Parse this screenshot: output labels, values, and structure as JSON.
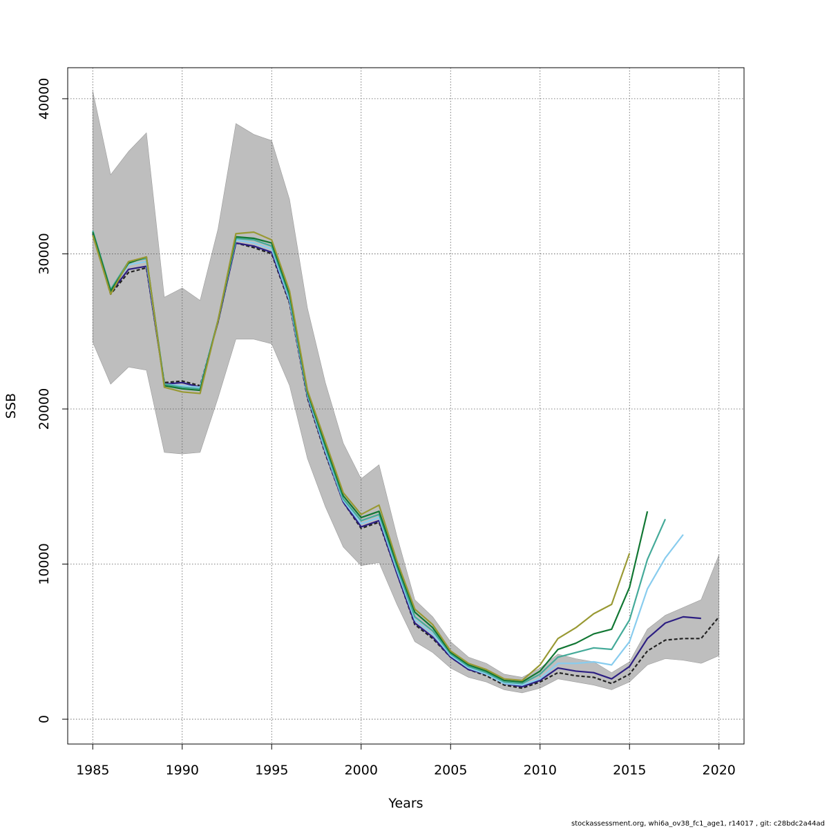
{
  "chart_data": {
    "type": "line",
    "xlabel": "Years",
    "ylabel": "SSB",
    "xlim": [
      1983.6,
      2021.4
    ],
    "ylim": [
      -1600,
      42000
    ],
    "x_ticks": [
      1985,
      1990,
      1995,
      2000,
      2005,
      2010,
      2015,
      2020
    ],
    "y_ticks": [
      0,
      10000,
      20000,
      30000,
      40000
    ],
    "grid": true,
    "band": {
      "color": "#bebebe",
      "x": [
        1985,
        1986,
        1987,
        1988,
        1989,
        1990,
        1991,
        1992,
        1993,
        1994,
        1995,
        1996,
        1997,
        1998,
        1999,
        2000,
        2001,
        2002,
        2003,
        2004,
        2005,
        2006,
        2007,
        2008,
        2009,
        2010,
        2011,
        2012,
        2013,
        2014,
        2015,
        2016,
        2017,
        2018,
        2019,
        2020
      ],
      "upper": [
        40500,
        35100,
        36600,
        37800,
        27200,
        27800,
        27000,
        31600,
        38400,
        37700,
        37300,
        33500,
        26500,
        21700,
        17800,
        15500,
        16400,
        11800,
        7700,
        6600,
        5000,
        4000,
        3600,
        2900,
        2700,
        3300,
        4200,
        3900,
        3700,
        3000,
        3700,
        5800,
        6700,
        7200,
        7700,
        10600
      ],
      "lower": [
        24300,
        21600,
        22700,
        22500,
        17200,
        17100,
        17200,
        20700,
        24500,
        24500,
        24200,
        21500,
        16800,
        13700,
        11100,
        9900,
        10100,
        7400,
        5000,
        4300,
        3300,
        2700,
        2400,
        1900,
        1700,
        2000,
        2600,
        2400,
        2200,
        1900,
        2400,
        3500,
        3900,
        3800,
        3600,
        4100
      ]
    },
    "series": [
      {
        "color": "#222222",
        "dashed": true,
        "width": 2.2,
        "x": [
          1985,
          1986,
          1987,
          1988,
          1989,
          1990,
          1991,
          1992,
          1993,
          1994,
          1995,
          1996,
          1997,
          1998,
          1999,
          2000,
          2001,
          2002,
          2003,
          2004,
          2005,
          2006,
          2007,
          2008,
          2009,
          2010,
          2011,
          2012,
          2013,
          2014,
          2015,
          2016,
          2017,
          2018,
          2019,
          2020
        ],
        "y": [
          31300,
          27400,
          28800,
          29100,
          21700,
          21800,
          21500,
          25600,
          30700,
          30400,
          30000,
          26800,
          20700,
          17100,
          14000,
          12300,
          12700,
          9400,
          6100,
          5200,
          4000,
          3200,
          2800,
          2200,
          2000,
          2400,
          3000,
          2800,
          2700,
          2300,
          2900,
          4400,
          5100,
          5200,
          5200,
          6600
        ]
      },
      {
        "color": "#2c1e82",
        "width": 2.2,
        "x": [
          1985,
          1986,
          1987,
          1988,
          1989,
          1990,
          1991,
          1992,
          1993,
          1994,
          1995,
          1996,
          1997,
          1998,
          1999,
          2000,
          2001,
          2002,
          2003,
          2004,
          2005,
          2006,
          2007,
          2008,
          2009,
          2010,
          2011,
          2012,
          2013,
          2014,
          2015,
          2016,
          2017,
          2018,
          2019
        ],
        "y": [
          31300,
          27500,
          29000,
          29200,
          21600,
          21700,
          21400,
          25600,
          30700,
          30500,
          30100,
          26900,
          20800,
          17200,
          14000,
          12400,
          12800,
          9400,
          6200,
          5300,
          4000,
          3200,
          2900,
          2300,
          2100,
          2500,
          3300,
          3100,
          3000,
          2600,
          3400,
          5200,
          6200,
          6600,
          6500
        ]
      },
      {
        "color": "#88ccee",
        "width": 2.2,
        "x": [
          1985,
          1986,
          1987,
          1988,
          1989,
          1990,
          1991,
          1992,
          1993,
          1994,
          1995,
          1996,
          1997,
          1998,
          1999,
          2000,
          2001,
          2002,
          2003,
          2004,
          2005,
          2006,
          2007,
          2008,
          2009,
          2010,
          2011,
          2012,
          2013,
          2014,
          2015,
          2016,
          2017,
          2018
        ],
        "y": [
          31400,
          27600,
          29300,
          29500,
          21600,
          21500,
          21400,
          25700,
          30900,
          30700,
          30300,
          27000,
          20900,
          17300,
          14100,
          12600,
          13000,
          9600,
          6400,
          5500,
          4100,
          3300,
          2900,
          2300,
          2200,
          2600,
          3600,
          3600,
          3700,
          3500,
          5000,
          8400,
          10400,
          11900
        ]
      },
      {
        "color": "#44aa99",
        "width": 2.2,
        "x": [
          1985,
          1986,
          1987,
          1988,
          1989,
          1990,
          1991,
          1992,
          1993,
          1994,
          1995,
          1996,
          1997,
          1998,
          1999,
          2000,
          2001,
          2002,
          2003,
          2004,
          2005,
          2006,
          2007,
          2008,
          2009,
          2010,
          2011,
          2012,
          2013,
          2014,
          2015,
          2016,
          2017
        ],
        "y": [
          31500,
          27700,
          29500,
          29700,
          21600,
          21400,
          21300,
          25700,
          31000,
          30900,
          30500,
          27200,
          21000,
          17500,
          14200,
          12800,
          13200,
          9800,
          6600,
          5700,
          4200,
          3400,
          3000,
          2400,
          2300,
          2900,
          4000,
          4300,
          4600,
          4500,
          6400,
          10300,
          12900
        ]
      },
      {
        "color": "#117733",
        "width": 2.2,
        "x": [
          1985,
          1986,
          1987,
          1988,
          1989,
          1990,
          1991,
          1992,
          1993,
          1994,
          1995,
          1996,
          1997,
          1998,
          1999,
          2000,
          2001,
          2002,
          2003,
          2004,
          2005,
          2006,
          2007,
          2008,
          2009,
          2010,
          2011,
          2012,
          2013,
          2014,
          2015,
          2016
        ],
        "y": [
          31400,
          27600,
          29400,
          29800,
          21500,
          21300,
          21200,
          25700,
          31100,
          31000,
          30700,
          27400,
          21100,
          17700,
          14400,
          13000,
          13400,
          10000,
          6900,
          5900,
          4300,
          3500,
          3100,
          2500,
          2400,
          3100,
          4500,
          4900,
          5500,
          5800,
          8500,
          13400
        ]
      },
      {
        "color": "#999933",
        "width": 2.2,
        "x": [
          1985,
          1986,
          1987,
          1988,
          1989,
          1990,
          1991,
          1992,
          1993,
          1994,
          1995,
          1996,
          1997,
          1998,
          1999,
          2000,
          2001,
          2002,
          2003,
          2004,
          2005,
          2006,
          2007,
          2008,
          2009,
          2010,
          2011,
          2012,
          2013,
          2014,
          2015
        ],
        "y": [
          31200,
          27400,
          29500,
          29800,
          21400,
          21100,
          21000,
          25700,
          31300,
          31400,
          30900,
          27600,
          21200,
          17900,
          14600,
          13200,
          13800,
          10200,
          7100,
          6100,
          4400,
          3600,
          3200,
          2600,
          2500,
          3500,
          5200,
          5900,
          6800,
          7400,
          10700
        ]
      }
    ]
  },
  "footer": "stockassessment.org, whi6a_ov38_fc1_age1, r14017 , git: c28bdc2a44ad"
}
